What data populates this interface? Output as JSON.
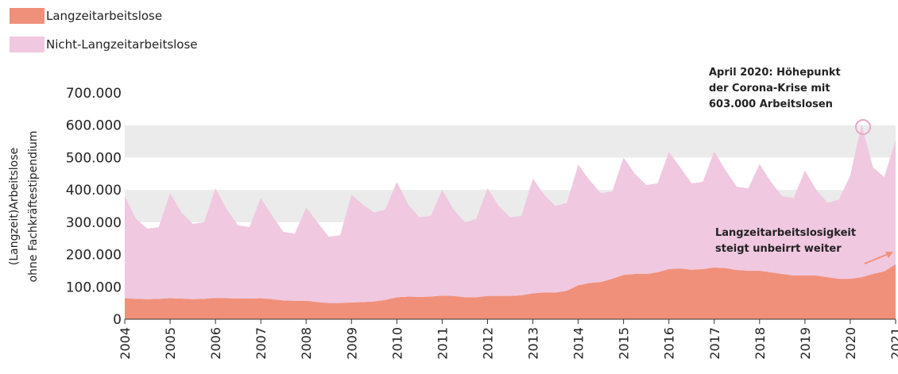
{
  "chart_data": {
    "type": "stacked_area",
    "y_label": [
      "(Langzeit)Arbeitslose",
      "ohne Fachkräftestipendium"
    ],
    "annotations": [
      [
        "April 2020: Höhepunkt",
        "der Corona-Krise mit",
        "603.000 Arbeitslosen"
      ],
      [
        "Langzeitarbeitslosigkeit",
        "steigt unbeirrt weiter"
      ]
    ],
    "x": [
      2004,
      2004.25,
      2004.5,
      2004.75,
      2005,
      2005.25,
      2005.5,
      2005.75,
      2006,
      2006.25,
      2006.5,
      2006.75,
      2007,
      2007.25,
      2007.5,
      2007.75,
      2008,
      2008.25,
      2008.5,
      2008.75,
      2009,
      2009.25,
      2009.5,
      2009.75,
      2010,
      2010.25,
      2010.5,
      2010.75,
      2011,
      2011.25,
      2011.5,
      2011.75,
      2012,
      2012.25,
      2012.5,
      2012.75,
      2013,
      2013.25,
      2013.5,
      2013.75,
      2014,
      2014.25,
      2014.5,
      2014.75,
      2015,
      2015.25,
      2015.5,
      2015.75,
      2016,
      2016.25,
      2016.5,
      2016.75,
      2017,
      2017.25,
      2017.5,
      2017.75,
      2018,
      2018.25,
      2018.5,
      2018.75,
      2019,
      2019.25,
      2019.5,
      2019.75,
      2020,
      2020.25,
      2020.5,
      2020.75,
      2021
    ],
    "series": [
      {
        "name": "Langzeitarbeitslose",
        "color": "#f0907a",
        "values": [
          65000,
          63000,
          62000,
          63000,
          65000,
          64000,
          62000,
          63000,
          66000,
          65000,
          64000,
          64000,
          65000,
          62000,
          58000,
          57000,
          57000,
          53000,
          50000,
          50000,
          52000,
          53000,
          55000,
          60000,
          68000,
          70000,
          69000,
          70000,
          73000,
          72000,
          68000,
          68000,
          72000,
          72000,
          72000,
          74000,
          80000,
          83000,
          83000,
          88000,
          105000,
          112000,
          115000,
          125000,
          137000,
          140000,
          140000,
          145000,
          155000,
          157000,
          153000,
          155000,
          160000,
          158000,
          152000,
          150000,
          150000,
          145000,
          140000,
          135000,
          135000,
          135000,
          130000,
          125000,
          125000,
          130000,
          140000,
          148000,
          170000
        ]
      },
      {
        "name": "Nicht-Langzeitarbeitslose",
        "color": "#f0c8e0",
        "values": [
          315000,
          247000,
          218000,
          222000,
          325000,
          266000,
          233000,
          237000,
          339000,
          275000,
          226000,
          221000,
          310000,
          258000,
          212000,
          208000,
          288000,
          247000,
          205000,
          210000,
          333000,
          302000,
          275000,
          280000,
          357000,
          285000,
          246000,
          250000,
          327000,
          268000,
          232000,
          242000,
          333000,
          278000,
          243000,
          246000,
          355000,
          302000,
          267000,
          272000,
          373000,
          318000,
          275000,
          270000,
          363000,
          310000,
          275000,
          275000,
          363000,
          313000,
          267000,
          270000,
          360000,
          302000,
          258000,
          255000,
          330000,
          280000,
          240000,
          240000,
          325000,
          265000,
          230000,
          245000,
          320000,
          473000,
          330000,
          292000,
          385000
        ]
      }
    ],
    "xlim": [
      2004,
      2021
    ],
    "xticks": [
      2004,
      2005,
      2006,
      2007,
      2008,
      2009,
      2010,
      2011,
      2012,
      2013,
      2014,
      2015,
      2016,
      2017,
      2018,
      2019,
      2020,
      2021
    ],
    "ylim": [
      0,
      700000
    ],
    "yticks": [
      0,
      {
        "value": 100000,
        "label": "100.000"
      },
      {
        "value": 200000,
        "label": "200.000"
      },
      {
        "value": 300000,
        "label": "300.000"
      },
      {
        "value": 400000,
        "label": "400.000"
      },
      {
        "value": 500000,
        "label": "500.000"
      },
      {
        "value": 600000,
        "label": "600.000"
      },
      {
        "value": 700000,
        "label": "700.000"
      }
    ],
    "grid": "bands",
    "legend": "top-left"
  }
}
